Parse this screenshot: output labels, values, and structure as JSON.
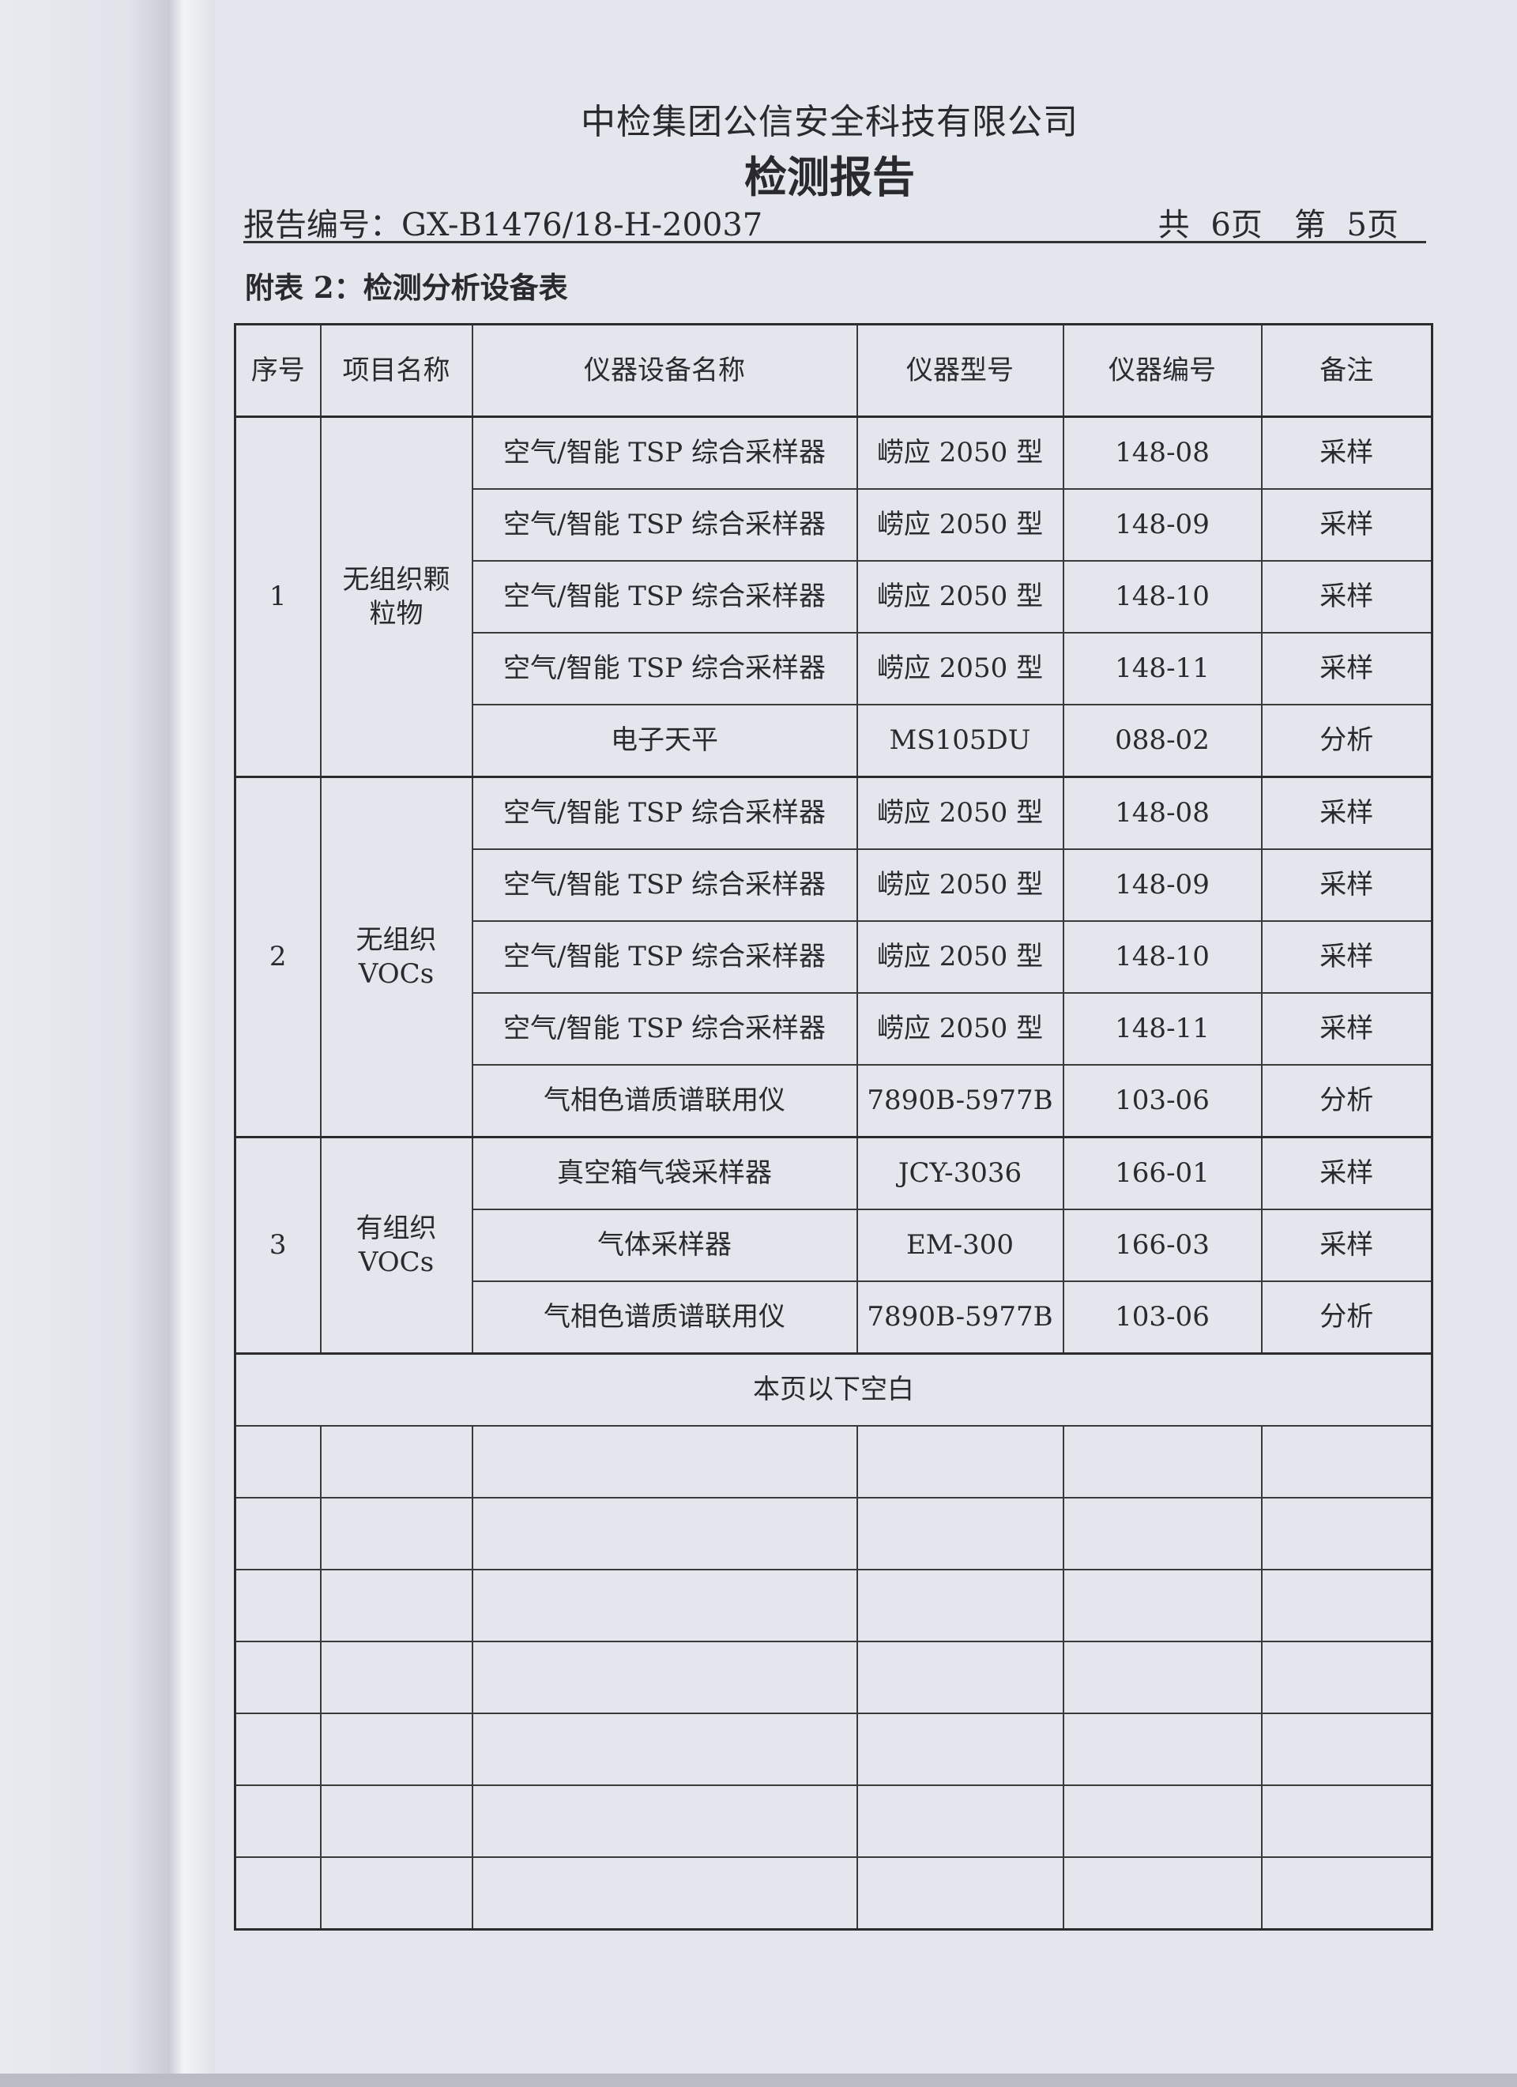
{
  "header": {
    "company": "中检集团公信安全科技有限公司",
    "title": "检测报告",
    "report_no": "报告编号：GX-B1476/18-H-20037",
    "pages": "共 6页　第 5页"
  },
  "subtitle": "附表 2：检测分析设备表",
  "table": {
    "columns": [
      "序号",
      "项目名称",
      "仪器设备名称",
      "仪器型号",
      "仪器编号",
      "备注"
    ],
    "groups": [
      {
        "no": "1",
        "item": "无组织颗粒物",
        "rows": [
          [
            "空气/智能 TSP 综合采样器",
            "崂应 2050 型",
            "148-08",
            "采样"
          ],
          [
            "空气/智能 TSP 综合采样器",
            "崂应 2050 型",
            "148-09",
            "采样"
          ],
          [
            "空气/智能 TSP 综合采样器",
            "崂应 2050 型",
            "148-10",
            "采样"
          ],
          [
            "空气/智能 TSP 综合采样器",
            "崂应 2050 型",
            "148-11",
            "采样"
          ],
          [
            "电子天平",
            "MS105DU",
            "088-02",
            "分析"
          ]
        ]
      },
      {
        "no": "2",
        "item": "无组织 VOCs",
        "rows": [
          [
            "空气/智能 TSP 综合采样器",
            "崂应 2050 型",
            "148-08",
            "采样"
          ],
          [
            "空气/智能 TSP 综合采样器",
            "崂应 2050 型",
            "148-09",
            "采样"
          ],
          [
            "空气/智能 TSP 综合采样器",
            "崂应 2050 型",
            "148-10",
            "采样"
          ],
          [
            "空气/智能 TSP 综合采样器",
            "崂应 2050 型",
            "148-11",
            "采样"
          ],
          [
            "气相色谱质谱联用仪",
            "7890B-5977B",
            "103-06",
            "分析"
          ]
        ]
      },
      {
        "no": "3",
        "item": "有组织 VOCs",
        "rows": [
          [
            "真空箱气袋采样器",
            "JCY-3036",
            "166-01",
            "采样"
          ],
          [
            "气体采样器",
            "EM-300",
            "166-03",
            "采样"
          ],
          [
            "气相色谱质谱联用仪",
            "7890B-5977B",
            "103-06",
            "分析"
          ]
        ]
      }
    ],
    "blank_note": "本页以下空白",
    "empty_rows": 7
  }
}
